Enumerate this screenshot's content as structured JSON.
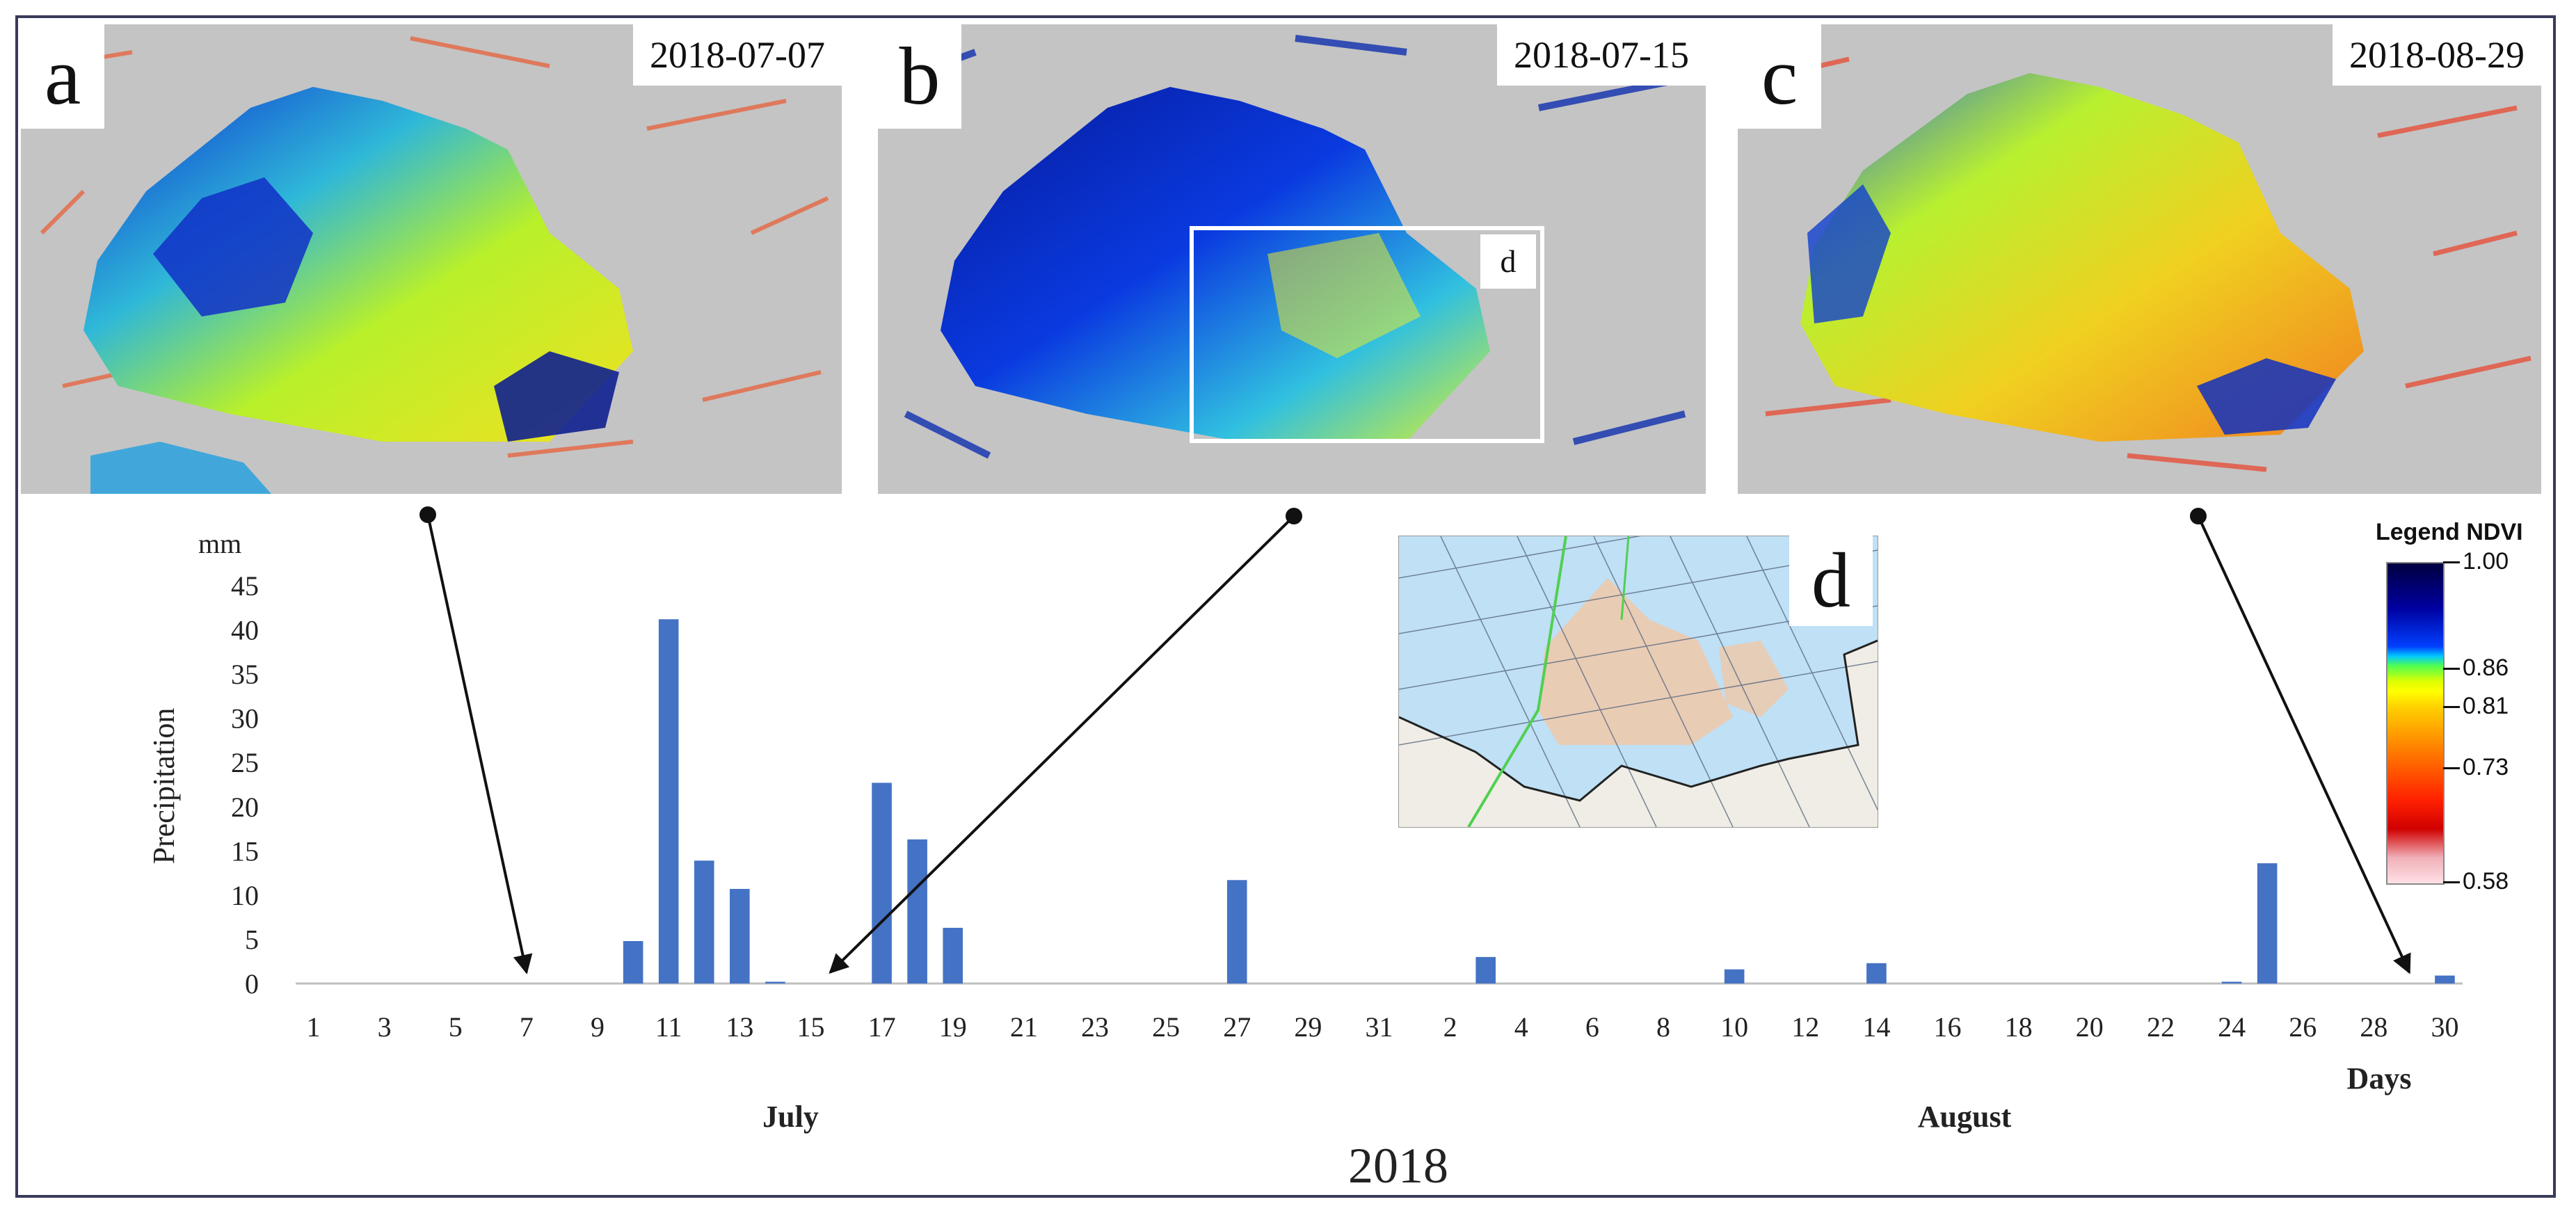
{
  "panels": [
    {
      "letter": "a",
      "date": "2018-07-07"
    },
    {
      "letter": "b",
      "date": "2018-07-15",
      "roi_label": "d"
    },
    {
      "letter": "c",
      "date": "2018-08-29"
    }
  ],
  "inset": {
    "letter": "d"
  },
  "legend": {
    "title": "Legend NDVI",
    "values": [
      "1.00",
      "0.86",
      "0.81",
      "0.73",
      "0.58"
    ],
    "stops": [
      1.0,
      0.86,
      0.81,
      0.73,
      0.58
    ]
  },
  "colors": {
    "bar": "#4472c4",
    "axis": "#bfbfbf",
    "arrow": "#111111",
    "frame": "#3a3a5a"
  },
  "chart_data": {
    "type": "bar",
    "title": "2018",
    "ylabel": "Precipitation",
    "yunit": "mm",
    "xlabel": "Days",
    "ylim": [
      0,
      45
    ],
    "yticks": [
      0,
      5,
      10,
      15,
      20,
      25,
      30,
      35,
      40,
      45
    ],
    "months": [
      {
        "name": "July",
        "first_index": 0,
        "last_index": 30
      },
      {
        "name": "August",
        "first_index": 31,
        "last_index": 60
      }
    ],
    "categories": [
      "1",
      "2",
      "3",
      "4",
      "5",
      "6",
      "7",
      "8",
      "9",
      "10",
      "11",
      "12",
      "13",
      "14",
      "15",
      "16",
      "17",
      "18",
      "19",
      "20",
      "21",
      "22",
      "23",
      "24",
      "25",
      "26",
      "27",
      "28",
      "29",
      "30",
      "31",
      "1",
      "2",
      "3",
      "4",
      "5",
      "6",
      "7",
      "8",
      "9",
      "10",
      "11",
      "12",
      "13",
      "14",
      "15",
      "16",
      "17",
      "18",
      "19",
      "20",
      "21",
      "22",
      "23",
      "24",
      "25",
      "26",
      "27",
      "28",
      "29",
      "30"
    ],
    "tick_labels": [
      "1",
      "3",
      "5",
      "7",
      "9",
      "11",
      "13",
      "15",
      "17",
      "19",
      "21",
      "23",
      "25",
      "27",
      "29",
      "31",
      "2",
      "4",
      "6",
      "8",
      "10",
      "12",
      "14",
      "16",
      "18",
      "20",
      "22",
      "24",
      "26",
      "28",
      "30"
    ],
    "values": [
      0,
      0,
      0,
      0,
      0,
      0,
      0,
      0,
      0,
      4.8,
      41.2,
      13.9,
      10.7,
      0.2,
      0,
      0,
      22.7,
      16.3,
      6.3,
      0,
      0,
      0,
      0,
      0,
      0,
      0,
      11.7,
      0,
      0,
      0,
      0,
      0,
      0,
      3.0,
      0,
      0,
      0,
      0,
      0,
      0,
      1.6,
      0,
      0,
      0,
      2.3,
      0,
      0,
      0,
      0,
      0,
      0,
      0,
      0,
      0,
      0.2,
      13.6,
      0,
      0,
      0,
      0,
      0.9
    ],
    "annotations": [
      {
        "panel": "a",
        "date": "2018-07-07",
        "index": 6
      },
      {
        "panel": "b",
        "date": "2018-07-15",
        "index": 14
      },
      {
        "panel": "c",
        "date": "2018-08-29",
        "index": 59
      }
    ]
  }
}
